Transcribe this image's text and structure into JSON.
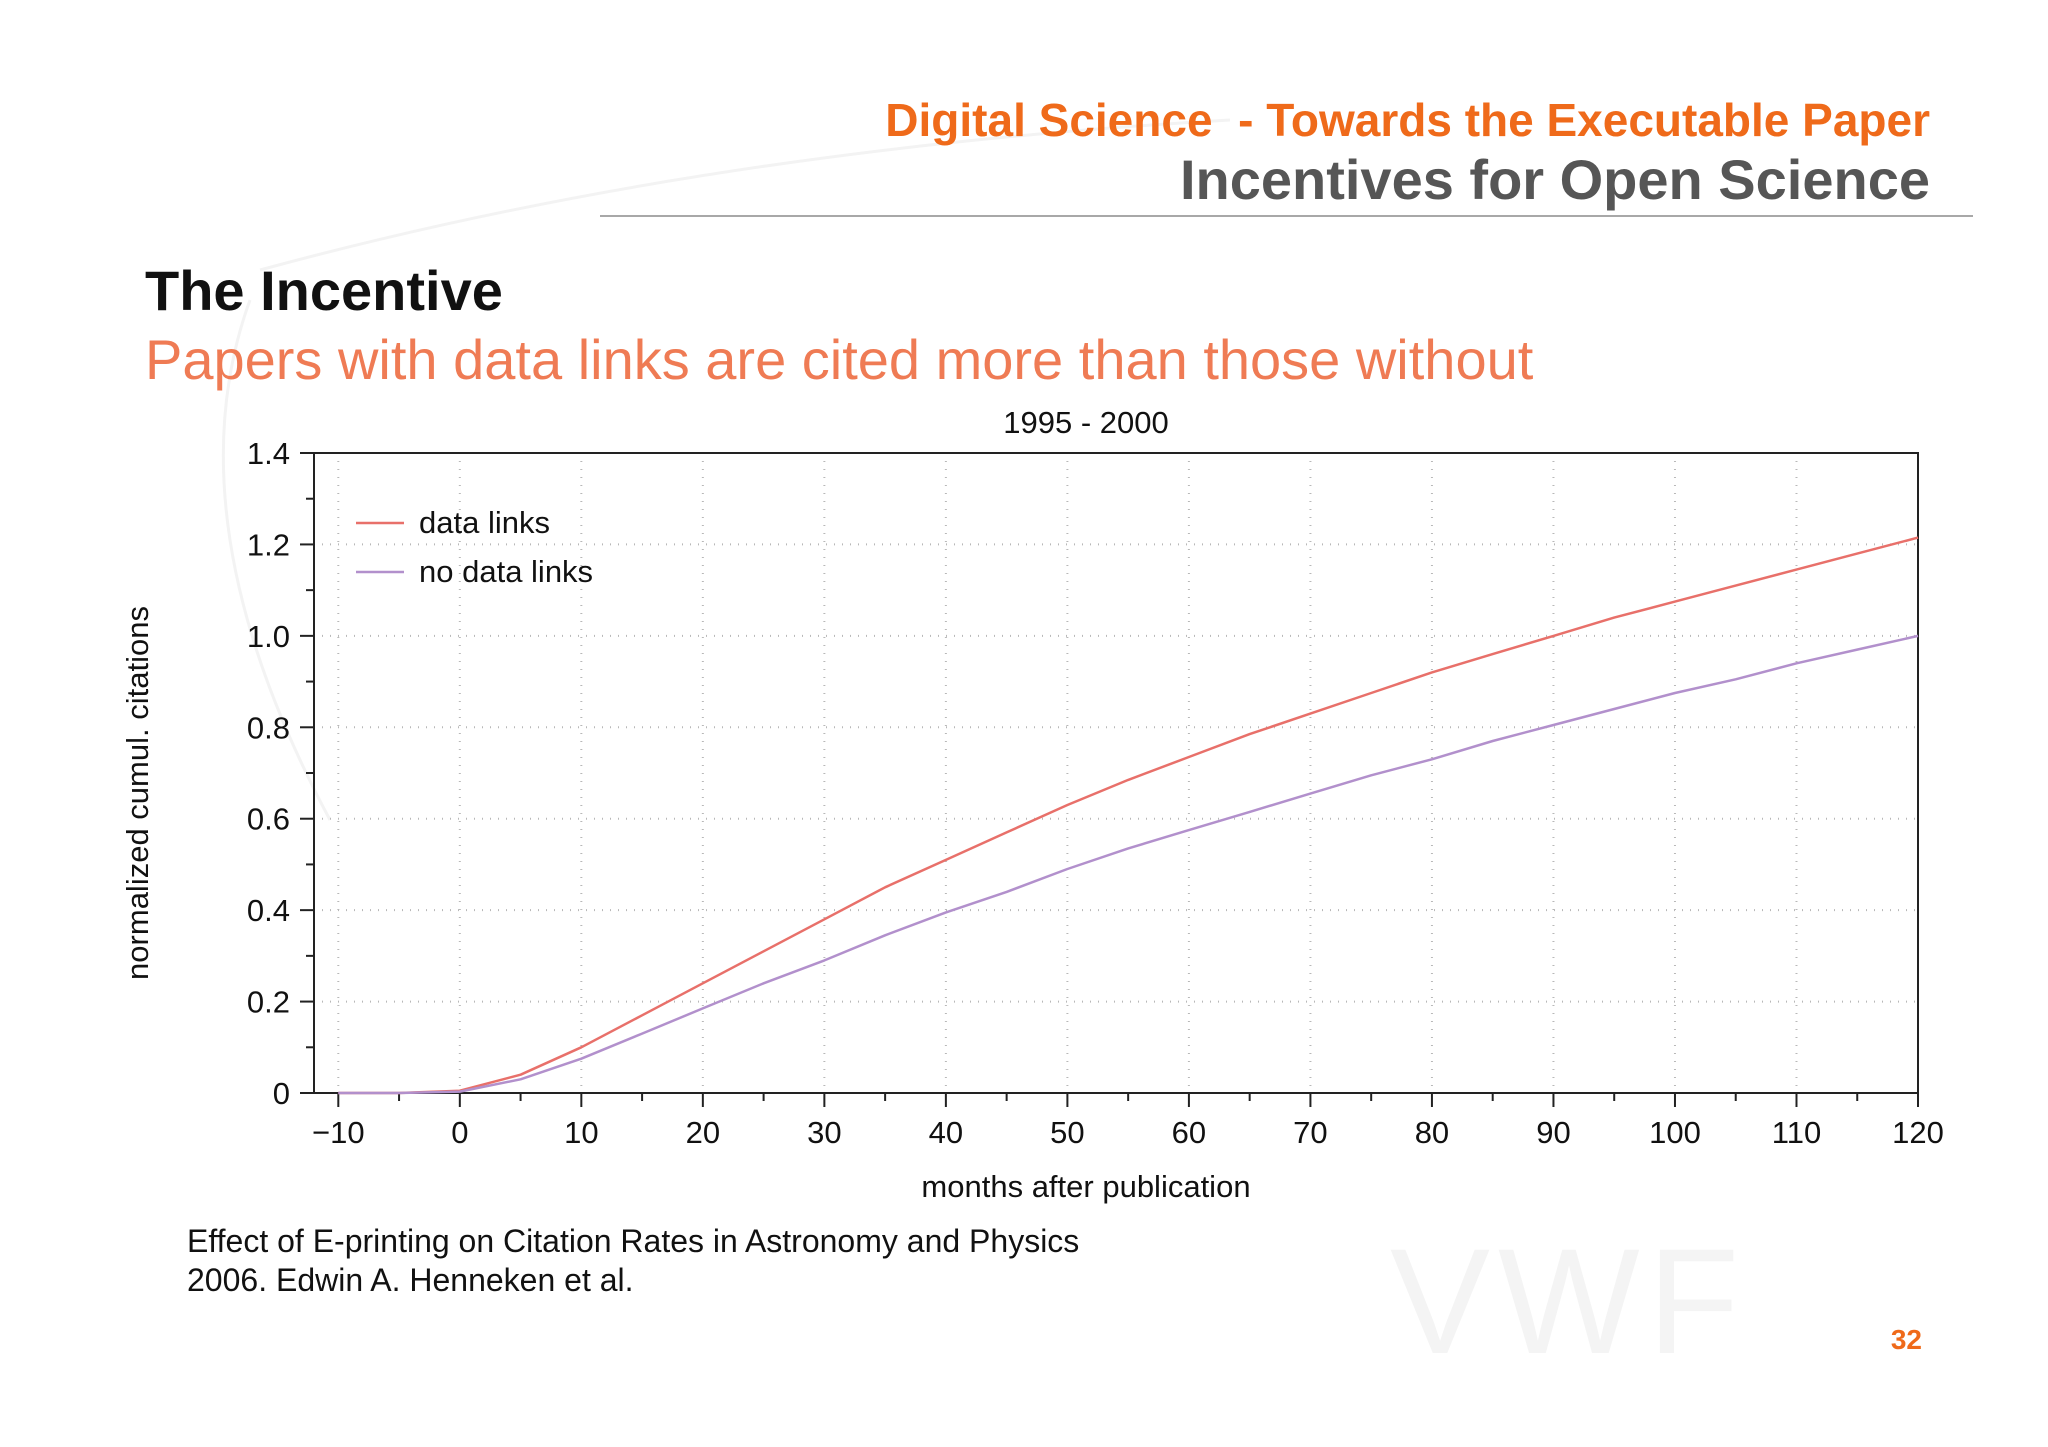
{
  "header": {
    "series_title": "Digital Science  - Towards the Executable Paper",
    "section_title": "Incentives for Open Science"
  },
  "slide": {
    "heading": "The Incentive",
    "subheading": "Papers with data links are cited more than those without"
  },
  "chart_data": {
    "type": "line",
    "title": "1995 - 2000",
    "xlabel": "months after publication",
    "ylabel": "normalized cumul. citations",
    "xlim": [
      -12,
      120
    ],
    "ylim": [
      0,
      1.4
    ],
    "x_ticks": [
      -10,
      0,
      10,
      20,
      30,
      40,
      50,
      60,
      70,
      80,
      90,
      100,
      110,
      120
    ],
    "x_tick_labels": [
      "−10",
      "0",
      "10",
      "20",
      "30",
      "40",
      "50",
      "60",
      "70",
      "80",
      "90",
      "100",
      "110",
      "120"
    ],
    "y_ticks": [
      0,
      0.2,
      0.4,
      0.6,
      0.8,
      1.0,
      1.2,
      1.4
    ],
    "y_tick_labels": [
      "0",
      "0.2",
      "0.4",
      "0.6",
      "0.8",
      "1.0",
      "1.2",
      "1.4"
    ],
    "grid": true,
    "legend_position": "top-left",
    "x": [
      -10,
      -5,
      0,
      5,
      10,
      15,
      20,
      25,
      30,
      35,
      40,
      45,
      50,
      55,
      60,
      65,
      70,
      75,
      80,
      85,
      90,
      95,
      100,
      105,
      110,
      115,
      120
    ],
    "series": [
      {
        "name": "data links",
        "color": "#e8706a",
        "values": [
          0,
          0,
          0.005,
          0.04,
          0.1,
          0.17,
          0.24,
          0.31,
          0.38,
          0.45,
          0.51,
          0.57,
          0.63,
          0.685,
          0.735,
          0.785,
          0.83,
          0.875,
          0.92,
          0.96,
          1.0,
          1.04,
          1.075,
          1.11,
          1.145,
          1.18,
          1.215
        ]
      },
      {
        "name": "no data links",
        "color": "#b290cc",
        "values": [
          0,
          0,
          0.003,
          0.03,
          0.075,
          0.13,
          0.185,
          0.24,
          0.29,
          0.345,
          0.395,
          0.44,
          0.49,
          0.535,
          0.575,
          0.615,
          0.655,
          0.695,
          0.73,
          0.77,
          0.805,
          0.84,
          0.875,
          0.905,
          0.94,
          0.97,
          1.0
        ]
      }
    ]
  },
  "caption": {
    "line1": "Effect of E-printing on Citation Rates in Astronomy and Physics",
    "line2": "2006. Edwin A. Henneken et al."
  },
  "page_number": "32"
}
